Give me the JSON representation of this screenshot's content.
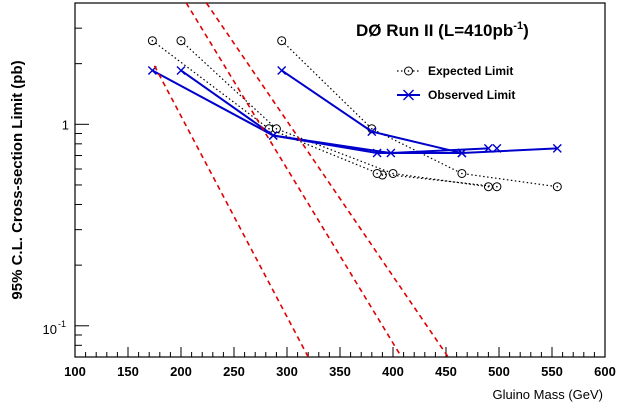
{
  "chart_data": {
    "type": "line",
    "title": "DØ Run II (L=410pb",
    "title_sup": "-1",
    "title_end": ")",
    "xlabel": "Gluino Mass (GeV)",
    "ylabel": "95% C.L. Cross-section Limit (pb)",
    "xlim": [
      100,
      600
    ],
    "ylim": [
      0.07,
      4.0
    ],
    "yscale": "log",
    "grid": false,
    "legend_position": "top-right",
    "x_ticks": [
      "100",
      "150",
      "200",
      "250",
      "300",
      "350",
      "400",
      "450",
      "500",
      "550",
      "600"
    ],
    "y_tick_labels": {
      "one": "1",
      "tenth_base": "10",
      "tenth_exp": "-1"
    },
    "series": [
      {
        "name": "Expected Limit",
        "style": "dotted-circles",
        "color": "#000000",
        "segments": [
          {
            "x": [
              173,
              283,
              390
            ],
            "y": [
              2.6,
              0.95,
              0.56
            ]
          },
          {
            "x": [
              200,
              290,
              400,
              490
            ],
            "y": [
              2.6,
              0.95,
              0.57,
              0.49
            ]
          },
          {
            "x": [
              295,
              380,
              465,
              555
            ],
            "y": [
              2.6,
              0.95,
              0.57,
              0.49
            ]
          },
          {
            "x": [
              385,
              498
            ],
            "y": [
              0.57,
              0.49
            ]
          }
        ]
      },
      {
        "name": "Observed Limit",
        "style": "solid-crosses",
        "color": "#0000cc",
        "segments": [
          {
            "x": [
              173,
              287,
              398,
              490
            ],
            "y": [
              1.85,
              0.88,
              0.72,
              0.76
            ]
          },
          {
            "x": [
              200,
              287,
              385,
              465
            ],
            "y": [
              1.85,
              0.88,
              0.72,
              0.72
            ]
          },
          {
            "x": [
              295,
              380,
              465,
              555
            ],
            "y": [
              1.85,
              0.92,
              0.72,
              0.76
            ]
          },
          {
            "x": [
              498
            ],
            "y": [
              0.76
            ]
          }
        ]
      },
      {
        "style": "dashed",
        "color": "#e00000",
        "segments": [
          {
            "x": [
              175,
              320
            ],
            "y": [
              1.95,
              0.07
            ]
          },
          {
            "x": [
              205,
              408
            ],
            "y": [
              4.0,
              0.07
            ]
          },
          {
            "x": [
              224,
              452
            ],
            "y": [
              4.0,
              0.07
            ]
          }
        ]
      }
    ]
  },
  "legend": [
    {
      "label": "Expected Limit",
      "marker": "circle"
    },
    {
      "label": "Observed Limit",
      "marker": "cross"
    }
  ]
}
